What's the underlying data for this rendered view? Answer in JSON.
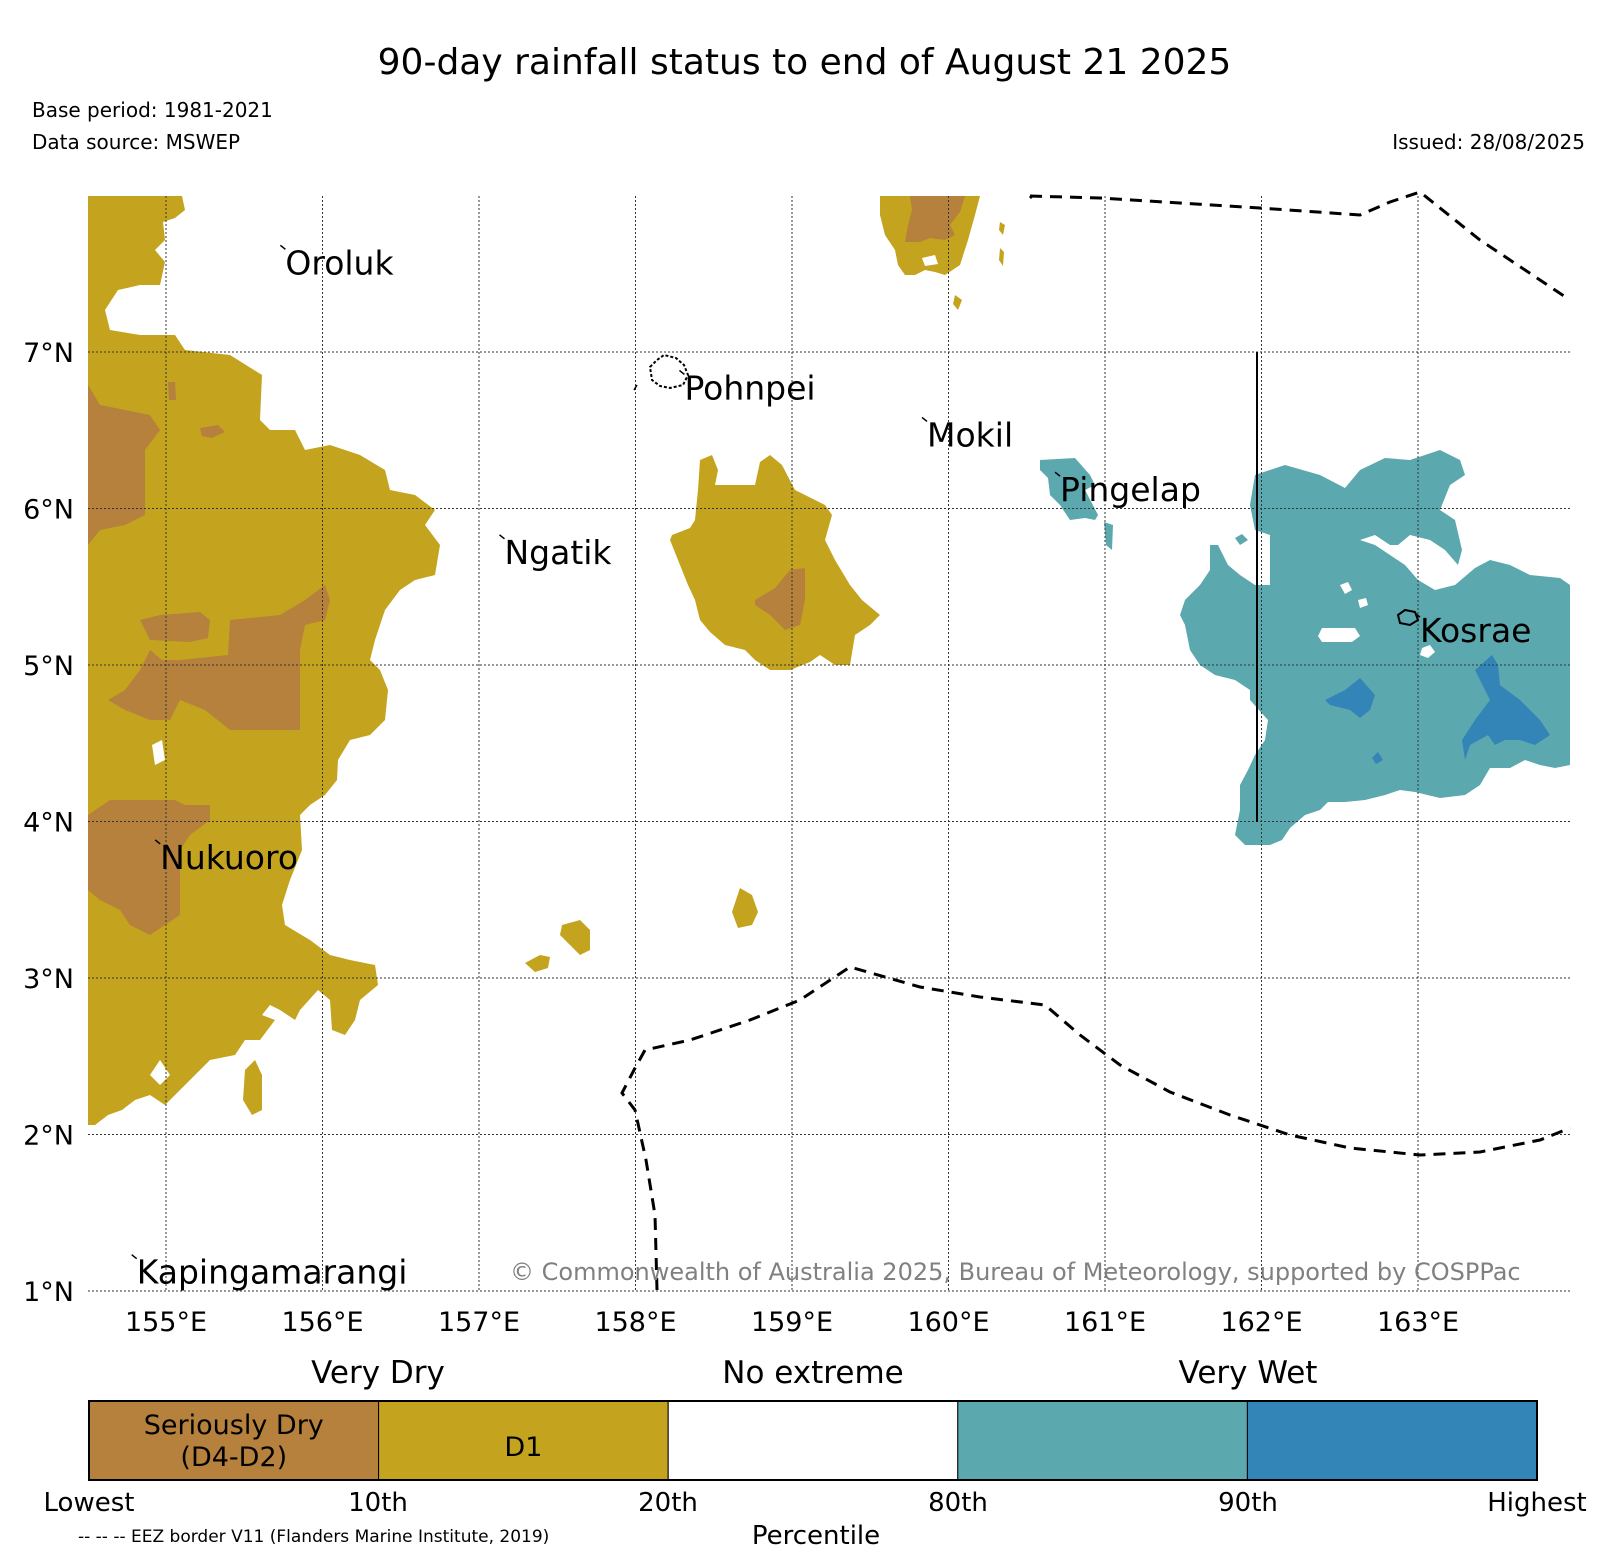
{
  "title": "90-day rainfall status to end of August 21 2025",
  "base_period": "Base period: 1981-2021",
  "data_source": "Data source: MSWEP",
  "issued": "Issued: 28/08/2025",
  "map": {
    "lon_range": [
      154.5,
      164.0
    ],
    "lat_range": [
      1.0,
      8.0
    ],
    "lon_ticks": [
      "155°E",
      "156°E",
      "157°E",
      "158°E",
      "159°E",
      "160°E",
      "161°E",
      "162°E",
      "163°E"
    ],
    "lat_ticks": [
      "7°N",
      "6°N",
      "5°N",
      "4°N",
      "3°N",
      "2°N",
      "1°N"
    ],
    "grid": true,
    "places": [
      {
        "name": "Oroluk",
        "lon": 155.75,
        "lat": 7.65
      },
      {
        "name": "Pohnpei",
        "lon": 158.3,
        "lat": 6.85
      },
      {
        "name": "Mokil",
        "lon": 159.85,
        "lat": 6.55
      },
      {
        "name": "Pingelap",
        "lon": 160.7,
        "lat": 6.2
      },
      {
        "name": "Ngatik",
        "lon": 157.15,
        "lat": 5.8
      },
      {
        "name": "Kosrae",
        "lon": 163.0,
        "lat": 5.3
      },
      {
        "name": "Nukuoro",
        "lon": 154.95,
        "lat": 3.85
      },
      {
        "name": "Kapingamarangi",
        "lon": 154.8,
        "lat": 1.2
      }
    ],
    "copyright": "© Commonwealth of Australia 2025, Bureau of Meteorology, supported by COSPPac"
  },
  "legend": {
    "headers": [
      "Very Dry",
      "No extreme",
      "Very Wet"
    ],
    "categories": [
      {
        "label": "Seriously Dry\n(D4-D2)",
        "color": "#b5813c"
      },
      {
        "label": "D1",
        "color": "#c4a41e"
      },
      {
        "label": "",
        "color": "#ffffff"
      },
      {
        "label": "",
        "color": "#5ba8ae"
      },
      {
        "label": "",
        "color": "#3385b7"
      }
    ],
    "ticks": [
      "Lowest",
      "10th",
      "20th",
      "80th",
      "90th",
      "Highest"
    ],
    "axis_label": "Percentile",
    "eez_note": "-- -- -- EEZ border V11 (Flanders Marine Institute, 2019)"
  }
}
